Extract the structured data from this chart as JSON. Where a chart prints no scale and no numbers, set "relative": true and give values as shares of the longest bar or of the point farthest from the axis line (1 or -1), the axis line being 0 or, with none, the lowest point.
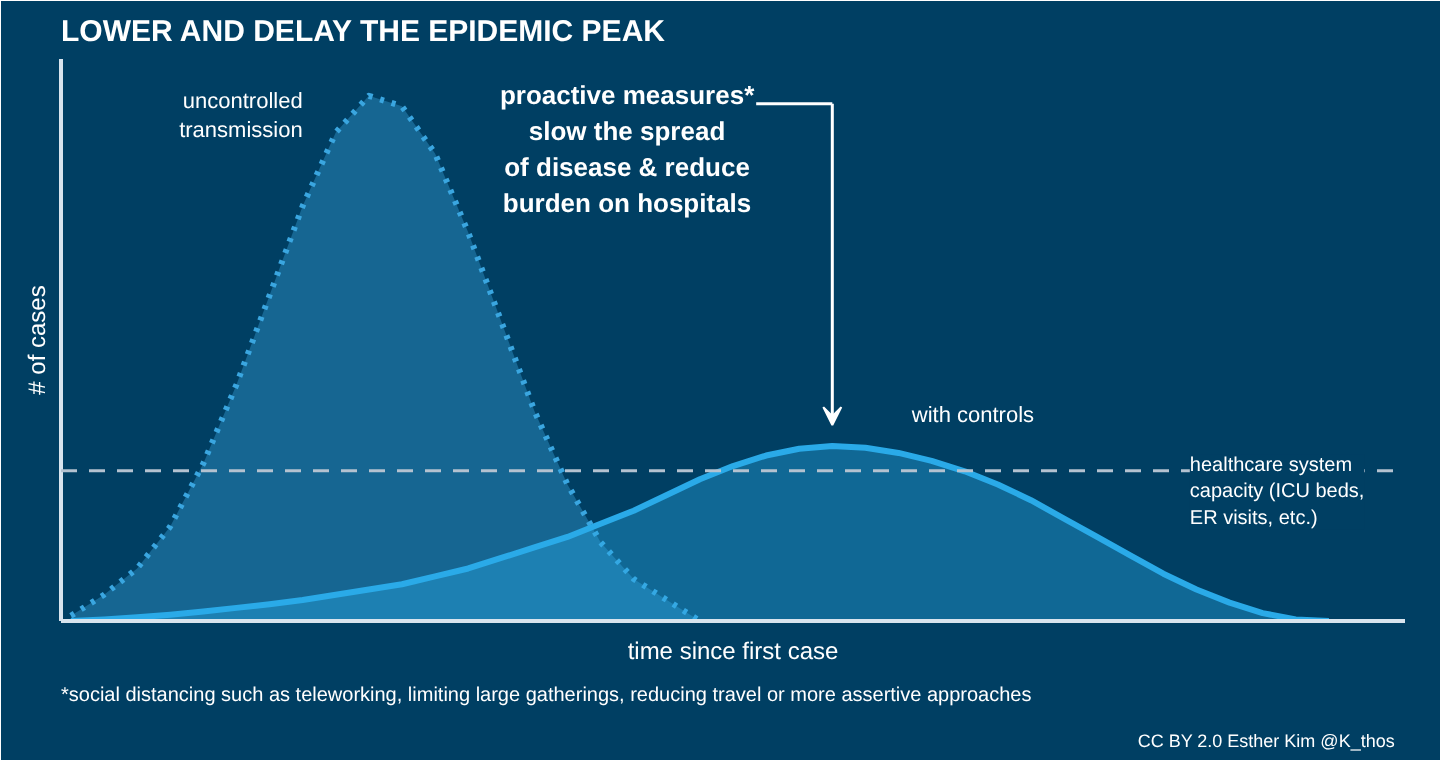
{
  "chart_data": {
    "type": "area",
    "relative": true,
    "title": "LOWER AND DELAY THE EPIDEMIC PEAK",
    "xlabel": "time since first case",
    "ylabel": "# of cases",
    "categories": [
      null,
      null,
      null,
      null,
      null,
      null,
      null,
      null,
      null,
      null,
      null,
      null,
      null,
      null,
      null,
      null,
      null,
      null,
      null,
      null,
      null,
      null,
      null,
      null,
      null,
      null,
      null,
      null,
      null,
      null,
      null,
      null,
      null,
      null,
      null,
      null,
      null,
      null,
      null,
      null,
      null
    ],
    "series": [
      {
        "name": "uncontrolled\ntransmission",
        "color": "#3aa6e0",
        "line_style": "dotted",
        "values": [
          0.01,
          0.05,
          0.1,
          0.18,
          0.3,
          0.45,
          0.62,
          0.79,
          0.93,
          1.0,
          0.98,
          0.89,
          0.74,
          0.57,
          0.4,
          0.26,
          0.15,
          0.08,
          0.04,
          0.0,
          null,
          null,
          null,
          null,
          null,
          null,
          null,
          null,
          null,
          null,
          null,
          null,
          null,
          null,
          null,
          null,
          null,
          null,
          null,
          null,
          null
        ]
      },
      {
        "name": "with controls",
        "color": "#2aaae8",
        "line_style": "solid",
        "values": [
          0.0,
          0.003,
          0.007,
          0.012,
          0.018,
          0.025,
          0.032,
          0.04,
          0.05,
          0.06,
          0.07,
          0.085,
          0.1,
          0.12,
          0.14,
          0.16,
          0.185,
          0.21,
          0.24,
          0.27,
          0.295,
          0.315,
          0.328,
          0.333,
          0.33,
          0.32,
          0.305,
          0.285,
          0.26,
          0.23,
          0.195,
          0.16,
          0.125,
          0.09,
          0.06,
          0.035,
          0.015,
          0.003,
          0.0,
          null,
          null
        ]
      }
    ],
    "ref_lines": [
      {
        "axis": "y",
        "value": 0.286,
        "label": "healthcare system\ncapacity (ICU beds,\nER visits, etc.)",
        "color": "#b4c2d0",
        "line_style": "dashed"
      }
    ],
    "annotations": [
      "proactive measures*\nslow the spread\nof disease & reduce\nburden on hospitals",
      "*social distancing such as teleworking, limiting large gatherings, reducing travel or more assertive approaches",
      "CC BY 2.0  Esther Kim  @K_thos"
    ],
    "grid": false,
    "marker": "none"
  }
}
